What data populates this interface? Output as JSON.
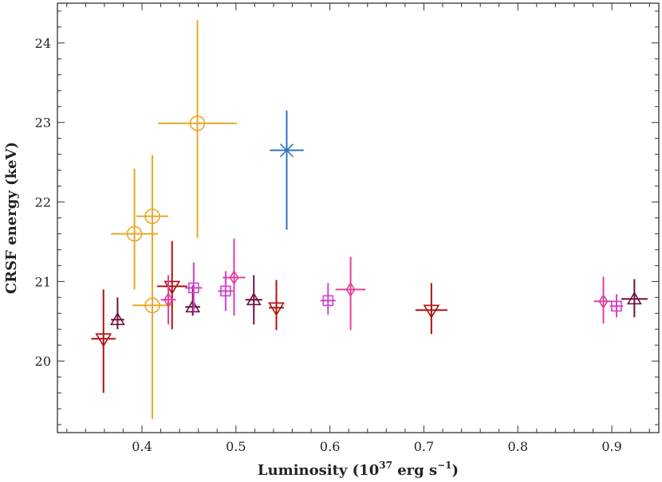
{
  "chart_data": {
    "type": "scatter",
    "title": "",
    "xlabel": {
      "main": "Luminosity (10",
      "sup": "37",
      "rest": " erg s",
      "sup2": "−1",
      "end": ")"
    },
    "ylabel": "CRSF energy (keV)",
    "xlim": [
      0.31,
      0.95
    ],
    "ylim": [
      19.1,
      24.5
    ],
    "xticks": [
      0.4,
      0.5,
      0.6,
      0.7,
      0.8,
      0.9
    ],
    "xtick_labels": [
      "0.4",
      "0.5",
      "0.6",
      "0.7",
      "0.8",
      "0.9"
    ],
    "yticks": [
      20,
      21,
      22,
      23,
      24
    ],
    "ytick_labels": [
      "20",
      "21",
      "22",
      "23",
      "24"
    ],
    "grid": false,
    "series": [
      {
        "marker": "circle",
        "color": "#E6A829",
        "points": [
          {
            "x": 0.392,
            "y": 21.6,
            "xerr": 0.025,
            "ylo": 20.9,
            "yhi": 22.42
          },
          {
            "x": 0.411,
            "y": 21.82,
            "xerr": 0.017,
            "ylo": 21.0,
            "yhi": 22.59
          },
          {
            "x": 0.411,
            "y": 20.7,
            "xerr": 0.021,
            "ylo": 19.27,
            "yhi": 21.12
          },
          {
            "x": 0.459,
            "y": 22.99,
            "xerr": 0.042,
            "ylo": 21.55,
            "yhi": 24.29
          }
        ]
      },
      {
        "marker": "cross",
        "color": "#2E75C0",
        "points": [
          {
            "x": 0.554,
            "y": 22.65,
            "xerr": 0.018,
            "ylo": 21.65,
            "yhi": 23.15
          }
        ]
      },
      {
        "marker": "triangle-down",
        "color": "#B01010",
        "points": [
          {
            "x": 0.359,
            "y": 20.28,
            "xerr": 0.013,
            "ylo": 19.6,
            "yhi": 20.9
          },
          {
            "x": 0.432,
            "y": 20.94,
            "xerr": 0.016,
            "ylo": 20.4,
            "yhi": 21.51
          },
          {
            "x": 0.543,
            "y": 20.67,
            "xerr": 0.008,
            "ylo": 20.39,
            "yhi": 21.02
          },
          {
            "x": 0.708,
            "y": 20.64,
            "xerr": 0.017,
            "ylo": 20.34,
            "yhi": 20.98
          }
        ]
      },
      {
        "marker": "triangle-up",
        "color": "#6E1040",
        "points": [
          {
            "x": 0.374,
            "y": 20.52,
            "xerr": 0.007,
            "ylo": 20.4,
            "yhi": 20.8
          },
          {
            "x": 0.454,
            "y": 20.68,
            "xerr": 0.008,
            "ylo": 20.57,
            "yhi": 20.95
          },
          {
            "x": 0.519,
            "y": 20.77,
            "xerr": 0.009,
            "ylo": 20.46,
            "yhi": 21.08
          },
          {
            "x": 0.924,
            "y": 20.78,
            "xerr": 0.014,
            "ylo": 20.55,
            "yhi": 21.03
          }
        ]
      },
      {
        "marker": "diamond",
        "color": "#E0409E",
        "points": [
          {
            "x": 0.428,
            "y": 20.77,
            "xerr": 0.008,
            "ylo": 20.46,
            "yhi": 21.08
          },
          {
            "x": 0.498,
            "y": 21.05,
            "xerr": 0.012,
            "ylo": 20.57,
            "yhi": 21.54
          },
          {
            "x": 0.622,
            "y": 20.9,
            "xerr": 0.016,
            "ylo": 20.39,
            "yhi": 21.31
          },
          {
            "x": 0.891,
            "y": 20.75,
            "xerr": 0.01,
            "ylo": 20.47,
            "yhi": 21.06
          }
        ]
      },
      {
        "marker": "square",
        "color": "#CC44CC",
        "points": [
          {
            "x": 0.455,
            "y": 20.92,
            "xerr": 0.009,
            "ylo": 20.62,
            "yhi": 21.24
          },
          {
            "x": 0.489,
            "y": 20.88,
            "xerr": 0.008,
            "ylo": 20.63,
            "yhi": 21.13
          },
          {
            "x": 0.598,
            "y": 20.76,
            "xerr": 0.008,
            "ylo": 20.58,
            "yhi": 20.98
          },
          {
            "x": 0.905,
            "y": 20.69,
            "xerr": 0.007,
            "ylo": 20.55,
            "yhi": 20.84
          }
        ]
      }
    ]
  }
}
